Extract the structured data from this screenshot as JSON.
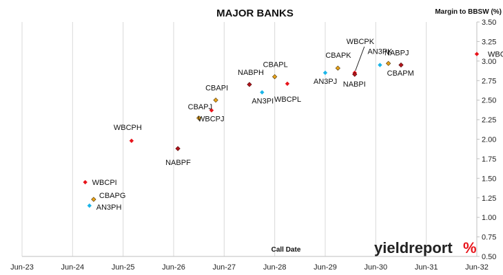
{
  "chart_data": {
    "type": "scatter",
    "title": "MAJOR BANKS",
    "xlabel": "Call Date",
    "ylabel": "Margin to BBSW (%)",
    "xlim": [
      "Jun-23",
      "Jun-32"
    ],
    "ylim": [
      0.5,
      3.5
    ],
    "x_ticks": [
      "Jun-23",
      "Jun-24",
      "Jun-25",
      "Jun-26",
      "Jun-27",
      "Jun-28",
      "Jun-29",
      "Jun-30",
      "Jun-31",
      "Jun-32"
    ],
    "y_ticks": [
      "0.50",
      "0.75",
      "1.00",
      "1.25",
      "1.50",
      "1.75",
      "2.00",
      "2.25",
      "2.50",
      "2.75",
      "3.00",
      "3.25",
      "3.50"
    ],
    "y_axis_side": "right",
    "grid": "vertical",
    "colors": {
      "WBC": "#e8141b",
      "CBA": "#e8a31a",
      "NAB": "#b3151c",
      "ANZ": "#1bb5e8"
    },
    "points": [
      {
        "label": "WBCPI",
        "x": "Sep-24",
        "y": 1.45,
        "group": "WBC"
      },
      {
        "label": "CBAPG",
        "x": "Nov-24",
        "y": 1.23,
        "group": "CBA"
      },
      {
        "label": "AN3PH",
        "x": "Oct-24",
        "y": 1.15,
        "group": "ANZ"
      },
      {
        "label": "WBCPH",
        "x": "Aug-25",
        "y": 1.98,
        "group": "WBC"
      },
      {
        "label": "NABPF",
        "x": "Jul-26",
        "y": 1.88,
        "group": "NAB"
      },
      {
        "label": "CBAPJ",
        "x": "Dec-26",
        "y": 2.27,
        "group": "CBA"
      },
      {
        "label": "WBCPJ",
        "x": "Mar-27",
        "y": 2.37,
        "group": "WBC"
      },
      {
        "label": "CBAPI",
        "x": "Apr-27",
        "y": 2.5,
        "group": "CBA"
      },
      {
        "label": "NABPH",
        "x": "Dec-27",
        "y": 2.7,
        "group": "NAB"
      },
      {
        "label": "AN3PI",
        "x": "Mar-28",
        "y": 2.6,
        "group": "ANZ"
      },
      {
        "label": "CBAPL",
        "x": "Jun-28",
        "y": 2.8,
        "group": "CBA"
      },
      {
        "label": "WBCPL",
        "x": "Sep-28",
        "y": 2.71,
        "group": "WBC"
      },
      {
        "label": "AN3PJ",
        "x": "Jun-29",
        "y": 2.85,
        "group": "ANZ"
      },
      {
        "label": "CBAPK",
        "x": "Sep-29",
        "y": 2.91,
        "group": "CBA"
      },
      {
        "label": "WBCPK",
        "x": "Jan-30",
        "y": 2.85,
        "group": "WBC"
      },
      {
        "label": "NABPI",
        "x": "Jan-30",
        "y": 2.83,
        "group": "NAB"
      },
      {
        "label": "AN3PK",
        "x": "Jul-30",
        "y": 2.95,
        "group": "ANZ"
      },
      {
        "label": "CBAPM",
        "x": "Sep-30",
        "y": 2.97,
        "group": "CBA"
      },
      {
        "label": "NABPJ",
        "x": "Dec-30",
        "y": 2.95,
        "group": "NAB"
      },
      {
        "label": "WBCPM",
        "x": "Jun-32",
        "y": 3.09,
        "group": "WBC"
      }
    ],
    "logo": {
      "text": "yieldreport",
      "symbol": "%"
    }
  }
}
